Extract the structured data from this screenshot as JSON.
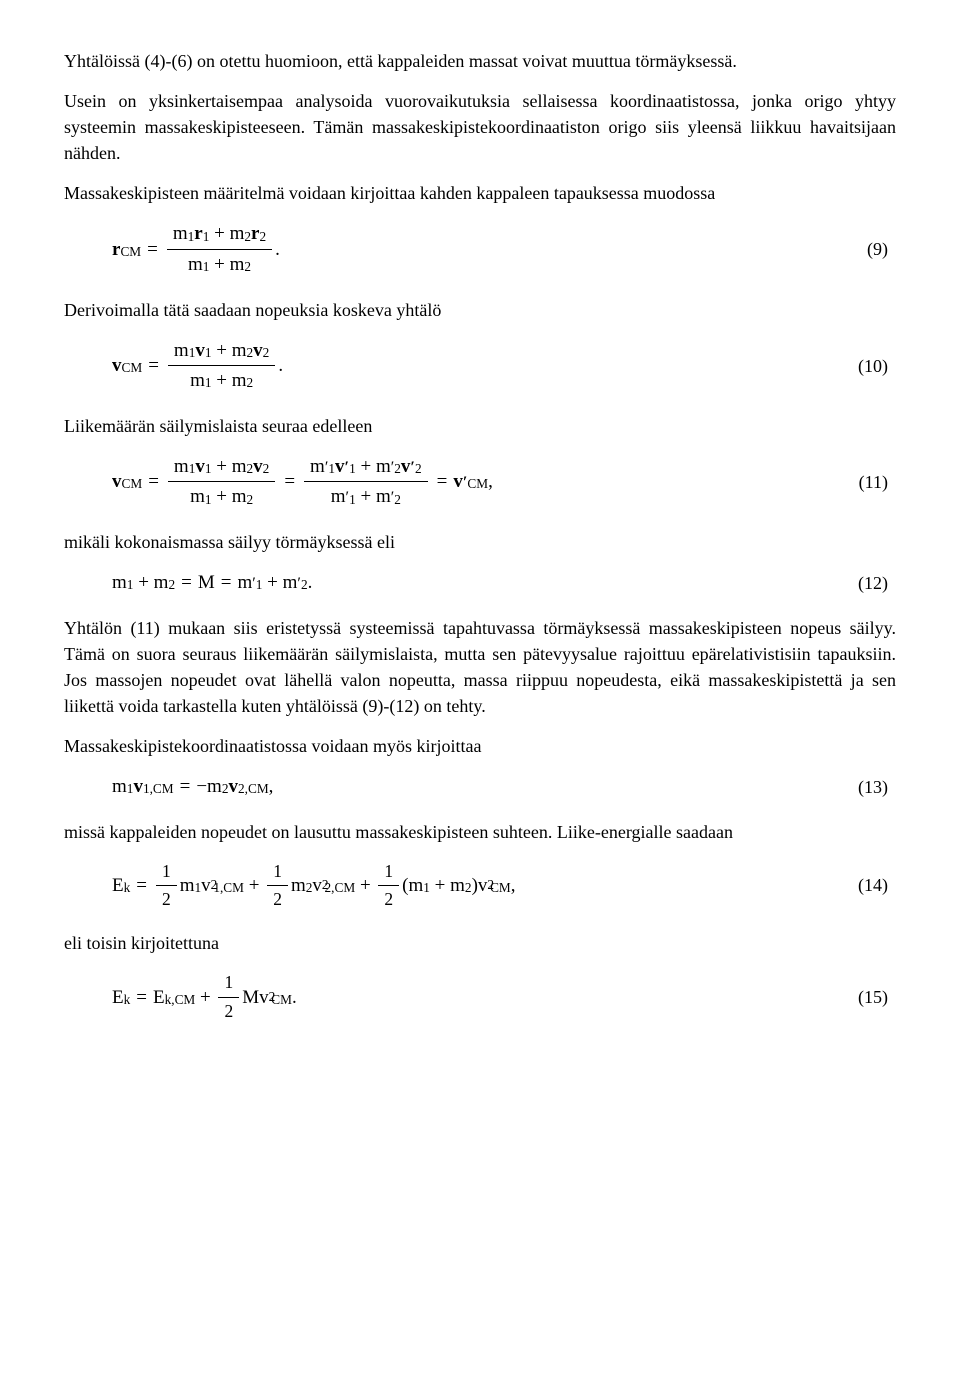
{
  "typography": {
    "font_family": "Times New Roman",
    "body_fontsize_pt": 13.5,
    "eq_fontsize_pt": 14,
    "line_height": 1.45,
    "text_color": "#000000",
    "background_color": "#ffffff"
  },
  "paragraphs": {
    "p1": "Yhtälöissä (4)-(6) on otettu huomioon, että kappaleiden massat voivat muuttua törmäyksessä.",
    "p2": "Usein on yksinkertaisempaa analysoida vuorovaikutuksia sellaisessa koordinaatistossa, jonka origo yhtyy systeemin massakeskipisteeseen. Tämän massakeskipistekoordinaatiston origo siis yleensä liikkuu havaitsijaan nähden.",
    "p3": "Massakeskipisteen määritelmä voidaan kirjoittaa kahden kappaleen tapauksessa muodossa",
    "p4": "Derivoimalla tätä saadaan nopeuksia koskeva yhtälö",
    "p5": "Liikemäärän säilymislaista seuraa edelleen",
    "p6": "mikäli kokonaismassa säilyy törmäyksessä eli",
    "p7": "Yhtälön (11) mukaan siis eristetyssä systeemissä tapahtuvassa törmäyksessä massakeskipisteen nopeus säilyy. Tämä on suora seuraus liikemäärän säilymislaista, mutta sen pätevyysalue rajoittuu epärelativistisiin tapauksiin. Jos massojen nopeudet ovat lähellä valon nopeutta, massa riippuu nopeudesta, eikä massakeskipistettä ja sen liikettä voida tarkastella kuten yhtälöissä (9)-(12) on tehty.",
    "p8": "Massakeskipistekoordinaatistossa voidaan myös kirjoittaa",
    "p9": "missä kappaleiden nopeudet on lausuttu massakeskipisteen suhteen. Liike-energialle saadaan",
    "p10": "eli toisin kirjoitettuna"
  },
  "equations": {
    "eq9": {
      "num": "(9)",
      "lhs_var": "r",
      "lhs_sub": "CM",
      "frac_num_parts": [
        "m",
        "1",
        "r",
        "1",
        "+",
        "m",
        "2",
        "r",
        "2"
      ],
      "frac_den_parts": [
        "m",
        "1",
        "+",
        "m",
        "2"
      ],
      "bold_vars": [
        "r"
      ]
    },
    "eq10": {
      "num": "(10)",
      "lhs_var": "v",
      "lhs_sub": "CM",
      "frac_num_parts": [
        "m",
        "1",
        "v",
        "1",
        "+",
        "m",
        "2",
        "v",
        "2"
      ],
      "frac_den_parts": [
        "m",
        "1",
        "+",
        "m",
        "2"
      ],
      "bold_vars": [
        "v"
      ]
    },
    "eq11": {
      "num": "(11)",
      "lhs_var": "v",
      "lhs_sub": "CM",
      "frac1_num": [
        "m",
        "1",
        "v",
        "1",
        "+",
        "m",
        "2",
        "v",
        "2"
      ],
      "frac1_den": [
        "m",
        "1",
        "+",
        "m",
        "2"
      ],
      "frac2_num": [
        "m'",
        "1",
        "v'",
        "1",
        "+",
        "m'",
        "2",
        "v'",
        "2"
      ],
      "frac2_den": [
        "m'",
        "1",
        "+",
        "m'",
        "2"
      ],
      "rhs_var": "v'",
      "rhs_sub": "CM",
      "bold_vars": [
        "v"
      ]
    },
    "eq12": {
      "num": "(12)",
      "text_parts": [
        "m",
        "1",
        "+",
        "m",
        "2",
        "=",
        "M",
        "=",
        "m'",
        "1",
        "+",
        "m'",
        "2",
        "."
      ]
    },
    "eq13": {
      "num": "(13)",
      "lhs": [
        "m",
        "1",
        "v",
        "1,CM"
      ],
      "rhs": [
        "−",
        "m",
        "2",
        "v",
        "2,CM",
        ","
      ],
      "bold_vars": [
        "v"
      ]
    },
    "eq14": {
      "num": "(14)",
      "lhs": "E",
      "lhs_sub": "k",
      "half": "1",
      "half_den": "2",
      "terms": [
        {
          "m": "m",
          "msub": "1",
          "v": "v",
          "vsub": "1,CM",
          "sup": "2"
        },
        {
          "m": "m",
          "msub": "2",
          "v": "v",
          "vsub": "2,CM",
          "sup": "2"
        },
        {
          "paren_l": "(",
          "m1": "m",
          "m1sub": "1",
          "plus": "+",
          "m2": "m",
          "m2sub": "2",
          "paren_r": ")",
          "v": "v",
          "vsub": "CM",
          "sup": "2"
        }
      ]
    },
    "eq15": {
      "num": "(15)",
      "lhs": "E",
      "lhs_sub": "k",
      "rhs1": "E",
      "rhs1_sub": "k,CM",
      "half": "1",
      "half_den": "2",
      "M": "M",
      "v": "v",
      "v_sub": "CM",
      "sup": "2"
    }
  }
}
